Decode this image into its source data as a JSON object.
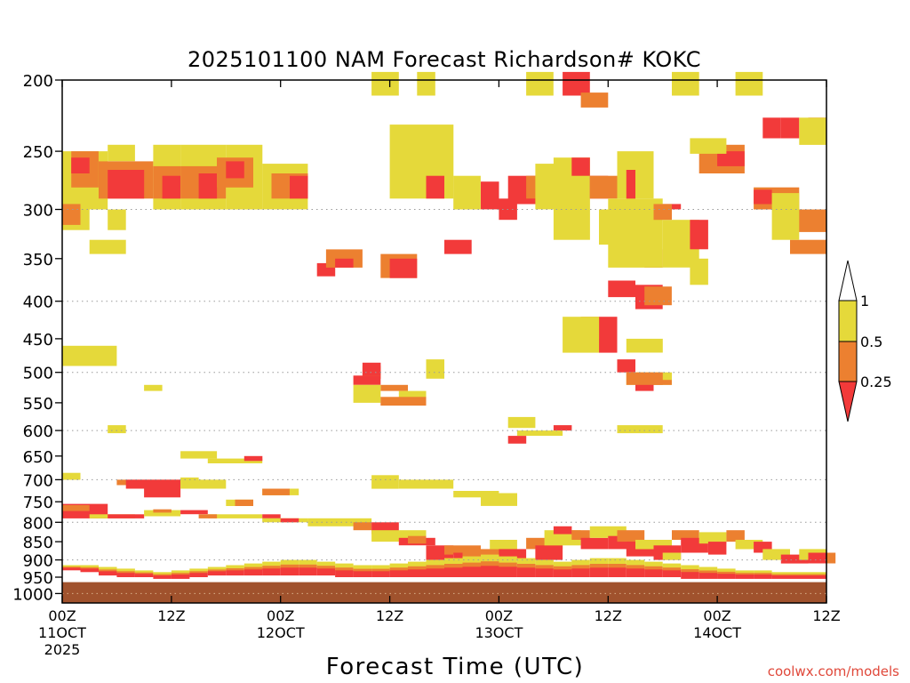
{
  "chart_data": {
    "type": "heatmap",
    "title": "2025101100 NAM Forecast Richardson# KOKC",
    "xlabel": "Forecast Time (UTC)",
    "ylabel": "",
    "credit": "coolwx.com/models",
    "y_axis": {
      "scale": "log-pressure",
      "inverted": true,
      "range": [
        1030,
        200
      ],
      "ticks": [
        200,
        250,
        300,
        350,
        400,
        450,
        500,
        550,
        600,
        650,
        700,
        750,
        800,
        850,
        900,
        950,
        1000
      ],
      "dotted_gridlines_at": [
        300,
        400,
        500,
        600,
        700,
        800,
        900,
        1000
      ]
    },
    "x_axis": {
      "range_hours": [
        0,
        84
      ],
      "ticks": [
        {
          "hour": 0,
          "line1": "00Z",
          "line2": "11OCT",
          "line3": "2025"
        },
        {
          "hour": 12,
          "line1": "12Z",
          "line2": "",
          "line3": ""
        },
        {
          "hour": 24,
          "line1": "00Z",
          "line2": "12OCT",
          "line3": ""
        },
        {
          "hour": 36,
          "line1": "12Z",
          "line2": "",
          "line3": ""
        },
        {
          "hour": 48,
          "line1": "00Z",
          "line2": "13OCT",
          "line3": ""
        },
        {
          "hour": 60,
          "line1": "12Z",
          "line2": "",
          "line3": ""
        },
        {
          "hour": 72,
          "line1": "00Z",
          "line2": "14OCT",
          "line3": ""
        },
        {
          "hour": 84,
          "line1": "12Z",
          "line2": "",
          "line3": ""
        }
      ]
    },
    "colorbar": {
      "labels": [
        "1",
        "0.5",
        "0.25"
      ],
      "bins": [
        {
          "range": "> 1",
          "color": "#ffffff"
        },
        {
          "range": "0.5 - 1",
          "color": "#e5d93a"
        },
        {
          "range": "0.25 - 0.5",
          "color": "#ec8030"
        },
        {
          "range": "< 0.25",
          "color": "#f23a3a"
        }
      ]
    },
    "colors": {
      "low": "#f23a3a",
      "mid": "#ec8030",
      "high": "#e5d93a",
      "ground": "#a0522d"
    },
    "ground_pressure_hpa": 965,
    "cells": [
      [
        "H",
        0,
        5,
        250,
        300
      ],
      [
        "M",
        1,
        4,
        250,
        280
      ],
      [
        "L",
        1,
        3,
        255,
        268
      ],
      [
        "H",
        5,
        8,
        245,
        258
      ],
      [
        "M",
        4,
        10,
        258,
        290
      ],
      [
        "L",
        5,
        9,
        265,
        290
      ],
      [
        "H",
        10,
        13,
        245,
        300
      ],
      [
        "M",
        10,
        13,
        262,
        290
      ],
      [
        "L",
        11,
        13,
        270,
        290
      ],
      [
        "H",
        13,
        18,
        245,
        300
      ],
      [
        "M",
        13,
        18,
        262,
        290
      ],
      [
        "L",
        15,
        17,
        268,
        290
      ],
      [
        "H",
        18,
        22,
        245,
        300
      ],
      [
        "M",
        17,
        21,
        255,
        280
      ],
      [
        "L",
        18,
        20,
        258,
        272
      ],
      [
        "H",
        22,
        27,
        260,
        300
      ],
      [
        "M",
        23,
        27,
        268,
        290
      ],
      [
        "L",
        25,
        27,
        270,
        290
      ],
      [
        "H",
        0,
        3,
        300,
        320
      ],
      [
        "M",
        0,
        2,
        295,
        315
      ],
      [
        "H",
        5,
        7,
        300,
        320
      ],
      [
        "H",
        3,
        7,
        330,
        345
      ],
      [
        "L",
        28,
        30,
        355,
        370
      ],
      [
        "M",
        29,
        33,
        340,
        360
      ],
      [
        "L",
        30,
        32,
        350,
        360
      ],
      [
        "M",
        35,
        39,
        345,
        372
      ],
      [
        "L",
        36,
        39,
        350,
        372
      ],
      [
        "L",
        42,
        45,
        330,
        345
      ],
      [
        "H",
        39,
        41,
        195,
        210
      ],
      [
        "H",
        34,
        37,
        195,
        210
      ],
      [
        "H",
        51,
        54,
        195,
        210
      ],
      [
        "L",
        55,
        58,
        195,
        210
      ],
      [
        "M",
        57,
        60,
        208,
        218
      ],
      [
        "H",
        67,
        70,
        195,
        210
      ],
      [
        "H",
        74,
        77,
        195,
        210
      ],
      [
        "L",
        77,
        79,
        225,
        240
      ],
      [
        "L",
        79,
        81,
        225,
        240
      ],
      [
        "L",
        82,
        84,
        225,
        240
      ],
      [
        "H",
        81,
        84,
        225,
        245
      ],
      [
        "M",
        70,
        75,
        245,
        268
      ],
      [
        "L",
        72,
        75,
        250,
        262
      ],
      [
        "H",
        69,
        73,
        240,
        252
      ],
      [
        "M",
        76,
        81,
        280,
        300
      ],
      [
        "L",
        76,
        78,
        282,
        295
      ],
      [
        "M",
        79,
        84,
        300,
        322
      ],
      [
        "M",
        80,
        84,
        330,
        345
      ],
      [
        "H",
        78,
        81,
        285,
        330
      ],
      [
        "L",
        37,
        41,
        245,
        270
      ],
      [
        "H",
        36,
        43,
        230,
        290
      ],
      [
        "L",
        46,
        48,
        275,
        300
      ],
      [
        "L",
        40,
        42,
        270,
        290
      ],
      [
        "H",
        43,
        46,
        270,
        300
      ],
      [
        "L",
        48,
        50,
        290,
        310
      ],
      [
        "L",
        49,
        53,
        270,
        295
      ],
      [
        "M",
        51,
        53,
        270,
        290
      ],
      [
        "H",
        52,
        56,
        260,
        300
      ],
      [
        "H",
        54,
        58,
        255,
        330
      ],
      [
        "L",
        56,
        58,
        255,
        270
      ],
      [
        "L",
        58,
        60,
        270,
        290
      ],
      [
        "M",
        58,
        61,
        270,
        290
      ],
      [
        "H",
        59,
        61,
        300,
        335
      ],
      [
        "H",
        61,
        65,
        250,
        290
      ],
      [
        "L",
        62,
        63,
        265,
        300
      ],
      [
        "L",
        64,
        66,
        340,
        360
      ],
      [
        "H",
        60,
        66,
        290,
        360
      ],
      [
        "L",
        63,
        66,
        380,
        410
      ],
      [
        "M",
        64,
        67,
        382,
        405
      ],
      [
        "L",
        60,
        63,
        375,
        395
      ],
      [
        "H",
        66,
        70,
        310,
        360
      ],
      [
        "L",
        66,
        68,
        295,
        300
      ],
      [
        "M",
        65,
        67,
        295,
        310
      ],
      [
        "L",
        69,
        71,
        310,
        340
      ],
      [
        "H",
        69,
        71,
        350,
        380
      ],
      [
        "L",
        59,
        61,
        420,
        470
      ],
      [
        "M",
        57,
        59,
        420,
        450
      ],
      [
        "H",
        55,
        59,
        420,
        470
      ],
      [
        "H",
        62,
        66,
        450,
        470
      ],
      [
        "L",
        61,
        63,
        480,
        500
      ],
      [
        "H",
        62,
        67,
        500,
        520
      ],
      [
        "M",
        64,
        67,
        512,
        520
      ],
      [
        "H",
        49,
        52,
        575,
        595
      ],
      [
        "L",
        54,
        56,
        590,
        600
      ],
      [
        "L",
        49,
        51,
        610,
        625
      ],
      [
        "H",
        50,
        55,
        600,
        610
      ],
      [
        "H",
        61,
        66,
        590,
        605
      ],
      [
        "L",
        63,
        65,
        515,
        530
      ],
      [
        "M",
        62,
        66,
        500,
        520
      ],
      [
        "H",
        40,
        42,
        480,
        510
      ],
      [
        "M",
        33,
        35,
        490,
        510
      ],
      [
        "L",
        33,
        35,
        485,
        505
      ],
      [
        "M",
        35,
        38,
        520,
        530
      ],
      [
        "L",
        32,
        35,
        505,
        520
      ],
      [
        "H",
        32,
        35,
        520,
        550
      ],
      [
        "H",
        37,
        40,
        530,
        550
      ],
      [
        "M",
        35,
        40,
        540,
        555
      ],
      [
        "H",
        9,
        11,
        520,
        530
      ],
      [
        "H",
        5,
        7,
        590,
        605
      ],
      [
        "H",
        0,
        6,
        460,
        490
      ],
      [
        "H",
        13,
        17,
        640,
        655
      ],
      [
        "H",
        16,
        22,
        655,
        665
      ],
      [
        "L",
        20,
        22,
        650,
        660
      ],
      [
        "H",
        0,
        2,
        685,
        700
      ],
      [
        "M",
        6,
        13,
        700,
        712
      ],
      [
        "L",
        7,
        13,
        700,
        720
      ],
      [
        "L",
        9,
        13,
        720,
        740
      ],
      [
        "H",
        13,
        15,
        695,
        710
      ],
      [
        "H",
        13,
        18,
        700,
        720
      ],
      [
        "H",
        18,
        21,
        745,
        760
      ],
      [
        "M",
        19,
        21,
        745,
        760
      ],
      [
        "H",
        22,
        26,
        720,
        735
      ],
      [
        "M",
        22,
        25,
        720,
        735
      ],
      [
        "H",
        34,
        37,
        690,
        720
      ],
      [
        "H",
        37,
        43,
        700,
        720
      ],
      [
        "H",
        43,
        48,
        725,
        740
      ],
      [
        "H",
        46,
        50,
        730,
        760
      ],
      [
        "L",
        0,
        5,
        755,
        790
      ],
      [
        "M",
        0,
        3,
        758,
        772
      ],
      [
        "H",
        3,
        8,
        780,
        790
      ],
      [
        "L",
        5,
        9,
        780,
        790
      ],
      [
        "H",
        9,
        13,
        770,
        785
      ],
      [
        "M",
        10,
        12,
        768,
        776
      ],
      [
        "L",
        13,
        16,
        770,
        780
      ],
      [
        "H",
        16,
        22,
        780,
        790
      ],
      [
        "M",
        15,
        17,
        780,
        790
      ],
      [
        "L",
        22,
        24,
        780,
        790
      ],
      [
        "H",
        22,
        27,
        790,
        800
      ],
      [
        "L",
        24,
        26,
        790,
        800
      ],
      [
        "H",
        27,
        34,
        790,
        810
      ],
      [
        "M",
        32,
        34,
        800,
        820
      ],
      [
        "L",
        34,
        37,
        800,
        830
      ],
      [
        "H",
        34,
        40,
        820,
        850
      ],
      [
        "L",
        37,
        41,
        840,
        860
      ],
      [
        "M",
        38,
        40,
        835,
        855
      ],
      [
        "L",
        40,
        43,
        860,
        900
      ],
      [
        "M",
        42,
        46,
        860,
        885
      ],
      [
        "L",
        43,
        47,
        880,
        910
      ],
      [
        "M",
        44,
        48,
        870,
        895
      ],
      [
        "H",
        47,
        50,
        845,
        870
      ],
      [
        "L",
        48,
        51,
        870,
        900
      ],
      [
        "M",
        51,
        55,
        840,
        870
      ],
      [
        "L",
        52,
        55,
        860,
        900
      ],
      [
        "H",
        53,
        57,
        820,
        860
      ],
      [
        "L",
        54,
        56,
        810,
        830
      ],
      [
        "M",
        56,
        58,
        820,
        845
      ],
      [
        "L",
        57,
        60,
        840,
        870
      ],
      [
        "H",
        58,
        62,
        810,
        840
      ],
      [
        "L",
        60,
        63,
        835,
        870
      ],
      [
        "M",
        61,
        64,
        820,
        850
      ],
      [
        "L",
        62,
        65,
        850,
        890
      ],
      [
        "H",
        63,
        67,
        845,
        870
      ],
      [
        "L",
        65,
        68,
        860,
        900
      ],
      [
        "H",
        66,
        68,
        880,
        900
      ],
      [
        "M",
        67,
        70,
        820,
        845
      ],
      [
        "L",
        68,
        71,
        840,
        880
      ],
      [
        "H",
        70,
        73,
        825,
        855
      ],
      [
        "L",
        71,
        73,
        850,
        885
      ],
      [
        "M",
        73,
        75,
        820,
        850
      ],
      [
        "H",
        74,
        77,
        845,
        870
      ],
      [
        "L",
        76,
        78,
        850,
        880
      ],
      [
        "H",
        77,
        80,
        870,
        900
      ],
      [
        "L",
        79,
        82,
        885,
        910
      ],
      [
        "H",
        81,
        84,
        870,
        900
      ],
      [
        "L",
        82,
        84,
        880,
        910
      ],
      [
        "M",
        84,
        84,
        880,
        910
      ]
    ],
    "low_level_band": [
      [
        0,
        915,
        930
      ],
      [
        2,
        915,
        935
      ],
      [
        4,
        920,
        945
      ],
      [
        6,
        925,
        950
      ],
      [
        8,
        930,
        950
      ],
      [
        10,
        935,
        955
      ],
      [
        12,
        930,
        955
      ],
      [
        14,
        925,
        950
      ],
      [
        16,
        920,
        945
      ],
      [
        18,
        915,
        945
      ],
      [
        20,
        910,
        945
      ],
      [
        22,
        905,
        945
      ],
      [
        24,
        900,
        945
      ],
      [
        26,
        900,
        945
      ],
      [
        28,
        905,
        945
      ],
      [
        30,
        910,
        950
      ],
      [
        32,
        915,
        950
      ],
      [
        34,
        915,
        950
      ],
      [
        36,
        910,
        950
      ],
      [
        38,
        905,
        950
      ],
      [
        40,
        900,
        950
      ],
      [
        42,
        895,
        950
      ],
      [
        44,
        890,
        950
      ],
      [
        46,
        885,
        950
      ],
      [
        48,
        890,
        950
      ],
      [
        50,
        895,
        950
      ],
      [
        52,
        900,
        950
      ],
      [
        54,
        905,
        950
      ],
      [
        56,
        900,
        950
      ],
      [
        58,
        895,
        950
      ],
      [
        60,
        895,
        950
      ],
      [
        62,
        900,
        950
      ],
      [
        64,
        905,
        950
      ],
      [
        66,
        910,
        950
      ],
      [
        68,
        915,
        955
      ],
      [
        70,
        920,
        955
      ],
      [
        72,
        925,
        955
      ],
      [
        74,
        930,
        955
      ],
      [
        76,
        930,
        955
      ],
      [
        78,
        935,
        955
      ],
      [
        80,
        935,
        955
      ],
      [
        82,
        935,
        955
      ],
      [
        84,
        935,
        955
      ]
    ]
  }
}
